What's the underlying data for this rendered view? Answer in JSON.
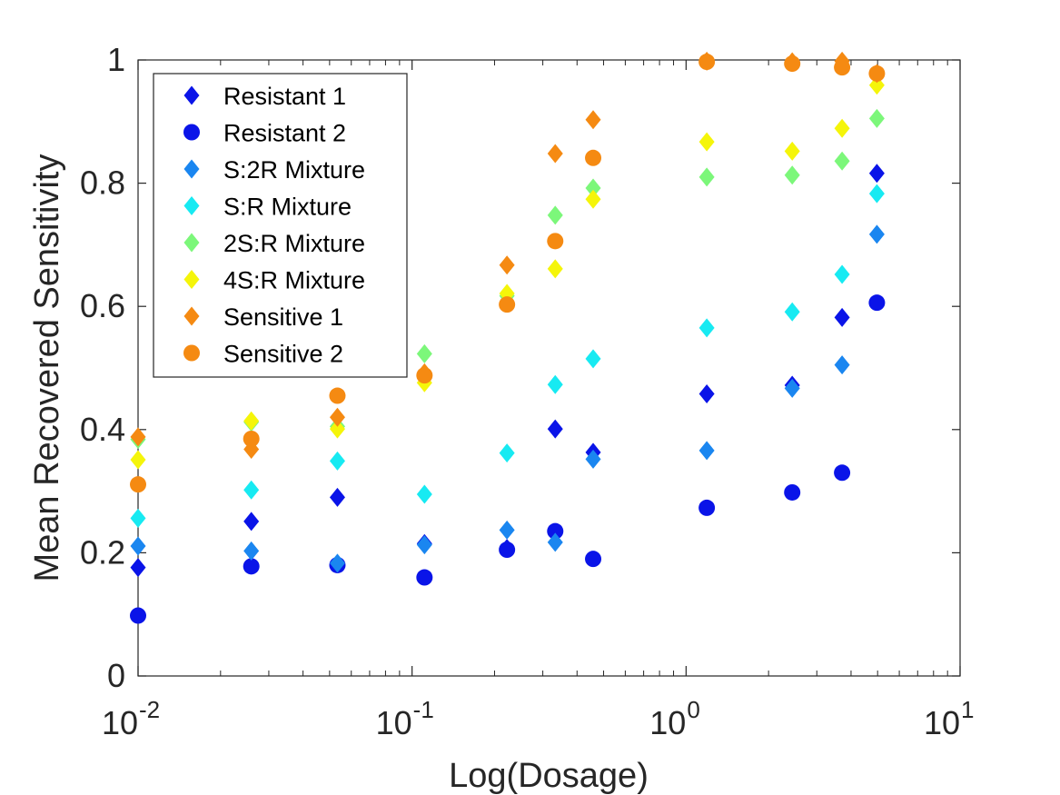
{
  "chart_data": {
    "type": "scatter",
    "title": "",
    "xlabel": "Log(Dosage)",
    "ylabel": "Mean Recovered Sensitivity",
    "xscale": "log",
    "xlim": [
      0.01,
      10
    ],
    "ylim": [
      0,
      1
    ],
    "xticks": [
      {
        "value": 0.01,
        "base": "10",
        "exp": "-2"
      },
      {
        "value": 0.1,
        "base": "10",
        "exp": "-1"
      },
      {
        "value": 1,
        "base": "10",
        "exp": "0"
      },
      {
        "value": 10,
        "base": "10",
        "exp": "1"
      }
    ],
    "yticks": [
      {
        "value": 0,
        "label": "0"
      },
      {
        "value": 0.2,
        "label": "0.2"
      },
      {
        "value": 0.4,
        "label": "0.4"
      },
      {
        "value": 0.6,
        "label": "0.6"
      },
      {
        "value": 0.8,
        "label": "0.8"
      },
      {
        "value": 1,
        "label": "1"
      }
    ],
    "grid": false,
    "legend_position": "top-left",
    "series": [
      {
        "name": "Resistant 1",
        "marker": "diamond",
        "color": "#0a14e8",
        "x": [
          0.01,
          0.0259,
          0.0534,
          0.111,
          0.222,
          0.333,
          0.458,
          1.19,
          2.44,
          3.71,
          4.97
        ],
        "y": [
          0.176,
          0.251,
          0.29,
          0.215,
          0.207,
          0.401,
          0.363,
          0.458,
          0.472,
          0.582,
          0.816
        ]
      },
      {
        "name": "Resistant 2",
        "marker": "circle",
        "color": "#0a14e8",
        "x": [
          0.01,
          0.0259,
          0.0534,
          0.111,
          0.222,
          0.333,
          0.458,
          1.19,
          2.44,
          3.71,
          4.97
        ],
        "y": [
          0.098,
          0.178,
          0.18,
          0.16,
          0.205,
          0.235,
          0.19,
          0.273,
          0.298,
          0.33,
          0.606
        ]
      },
      {
        "name": "S:2R Mixture",
        "marker": "diamond",
        "color": "#1a86f0",
        "x": [
          0.01,
          0.0259,
          0.0534,
          0.111,
          0.222,
          0.333,
          0.458,
          1.19,
          2.44,
          3.71,
          4.97
        ],
        "y": [
          0.211,
          0.203,
          0.183,
          0.213,
          0.237,
          0.217,
          0.352,
          0.366,
          0.467,
          0.505,
          0.717
        ]
      },
      {
        "name": "S:R Mixture",
        "marker": "diamond",
        "color": "#17eaf2",
        "x": [
          0.01,
          0.0259,
          0.0534,
          0.111,
          0.222,
          0.333,
          0.458,
          1.19,
          2.44,
          3.71,
          4.97
        ],
        "y": [
          0.256,
          0.302,
          0.349,
          0.295,
          0.362,
          0.473,
          0.515,
          0.565,
          0.591,
          0.652,
          0.783
        ]
      },
      {
        "name": "2S:R Mixture",
        "marker": "diamond",
        "color": "#7cf77a",
        "x": [
          0.01,
          0.0259,
          0.0534,
          0.111,
          0.222,
          0.333,
          0.458,
          1.19,
          2.44,
          3.71,
          4.97
        ],
        "y": [
          0.384,
          0.412,
          0.405,
          0.523,
          0.617,
          0.748,
          0.792,
          0.81,
          0.813,
          0.836,
          0.905
        ]
      },
      {
        "name": "4S:R Mixture",
        "marker": "diamond",
        "color": "#f5f50a",
        "x": [
          0.01,
          0.0259,
          0.0534,
          0.111,
          0.222,
          0.333,
          0.458,
          1.19,
          2.44,
          3.71,
          4.97
        ],
        "y": [
          0.351,
          0.414,
          0.401,
          0.476,
          0.621,
          0.661,
          0.774,
          0.867,
          0.852,
          0.889,
          0.959
        ]
      },
      {
        "name": "Sensitive 1",
        "marker": "diamond",
        "color": "#f58a12",
        "x": [
          0.01,
          0.0259,
          0.0534,
          0.111,
          0.222,
          0.333,
          0.458,
          1.19,
          2.44,
          3.71,
          4.97
        ],
        "y": [
          0.388,
          0.368,
          0.42,
          0.492,
          0.667,
          0.848,
          0.903,
          0.998,
          0.997,
          0.998,
          0.978
        ]
      },
      {
        "name": "Sensitive 2",
        "marker": "circle",
        "color": "#f58a12",
        "x": [
          0.01,
          0.0259,
          0.0534,
          0.111,
          0.222,
          0.333,
          0.458,
          1.19,
          2.44,
          3.71,
          4.97
        ],
        "y": [
          0.311,
          0.385,
          0.455,
          0.488,
          0.603,
          0.706,
          0.841,
          0.997,
          0.994,
          0.988,
          0.978
        ]
      }
    ]
  }
}
